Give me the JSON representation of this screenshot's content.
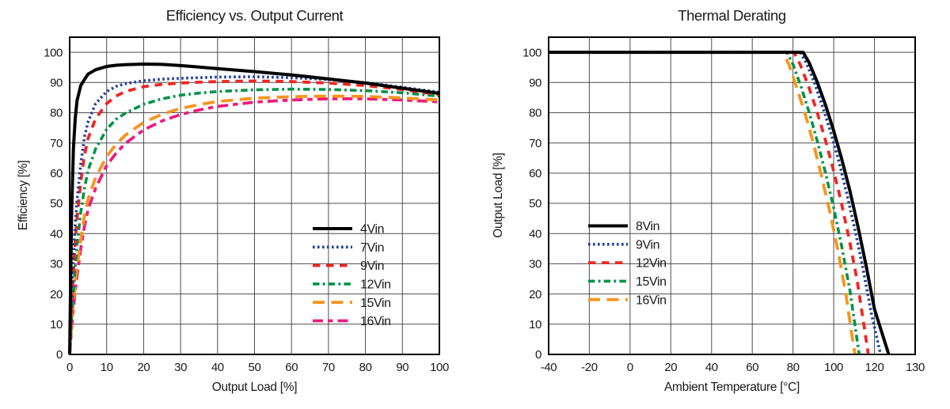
{
  "page": {
    "background": "#ffffff"
  },
  "colors": {
    "grid": "#4d4d4d",
    "frame": "#000000",
    "text": "#1a1a1a",
    "series_black": "#000000",
    "series_blue": "#21409a",
    "series_red": "#ee2724",
    "series_green": "#009347",
    "series_orange": "#f7941e",
    "series_pink": "#ec1c7c"
  },
  "chart_data": [
    {
      "type": "line",
      "title": "Efficiency vs. Output Current",
      "xlabel": "Output Load [%]",
      "ylabel": "Efficiency [%]",
      "xlim": [
        0,
        100
      ],
      "ylim": [
        0,
        105
      ],
      "xticks": [
        0,
        10,
        20,
        30,
        40,
        50,
        60,
        70,
        80,
        90,
        100
      ],
      "yticks": [
        0,
        10,
        20,
        30,
        40,
        50,
        60,
        70,
        80,
        90,
        100
      ],
      "grid": true,
      "legend_position": "inside-lower-right",
      "x": [
        0,
        0.5,
        1,
        1.5,
        2,
        3,
        4,
        5,
        7,
        10,
        12.5,
        15,
        20,
        25,
        30,
        35,
        40,
        50,
        60,
        70,
        80,
        90,
        100
      ],
      "series": [
        {
          "name": "4Vin",
          "color": "#000000",
          "style": "solid",
          "values": [
            0,
            45,
            68,
            78,
            84,
            89,
            91,
            92.8,
            94.2,
            95.3,
            95.7,
            95.9,
            96.1,
            96,
            95.6,
            95.1,
            94.6,
            93.6,
            92.5,
            91.2,
            89.8,
            88.1,
            86.4
          ]
        },
        {
          "name": "7Vin",
          "color": "#21409a",
          "style": "dotted",
          "values": [
            0,
            18,
            32,
            43,
            51,
            63,
            72,
            77,
            83,
            87,
            88.7,
            89.6,
            90.6,
            91.1,
            91.4,
            91.6,
            91.8,
            91.9,
            91.6,
            91,
            90,
            88.4,
            86.8
          ]
        },
        {
          "name": "9Vin",
          "color": "#ee2724",
          "style": "dashed",
          "values": [
            0,
            15,
            27,
            37,
            45,
            57,
            66,
            71.5,
            78,
            83,
            85.5,
            87,
            88.6,
            89.4,
            89.8,
            90.1,
            90.3,
            90.5,
            90.3,
            89.8,
            89,
            87.7,
            85.9
          ]
        },
        {
          "name": "12Vin",
          "color": "#009347",
          "style": "dashdot",
          "values": [
            0,
            12,
            21,
            29,
            36,
            47,
            55,
            61,
            68,
            74.5,
            77.8,
            79.8,
            82.8,
            84.6,
            85.8,
            86.5,
            87,
            87.6,
            87.8,
            87.7,
            87.3,
            86.6,
            85.5
          ]
        },
        {
          "name": "15Vin",
          "color": "#f7941e",
          "style": "longdash",
          "values": [
            0,
            9,
            17,
            23,
            29,
            38,
            46,
            51.5,
            58.5,
            65.5,
            69.5,
            72.5,
            76.8,
            79.5,
            81.4,
            82.7,
            83.7,
            84.8,
            85.3,
            85.5,
            85.4,
            84.9,
            84.2
          ]
        },
        {
          "name": "16Vin",
          "color": "#ec1c7c",
          "style": "longdashdot",
          "values": [
            0,
            8,
            15,
            21,
            26,
            35,
            42.5,
            48,
            55,
            62.5,
            66.5,
            69.8,
            74.3,
            77.3,
            79.4,
            80.9,
            82.1,
            83.5,
            84.2,
            84.6,
            84.6,
            84.2,
            83.6
          ]
        }
      ]
    },
    {
      "type": "line",
      "title": "Thermal Derating",
      "xlabel": "Ambient Temperature [°C]",
      "ylabel": "Output Load [%]",
      "xlim": [
        -40,
        130
      ],
      "ylim": [
        0,
        105
      ],
      "xticks": [
        -40,
        -20,
        0,
        20,
        40,
        60,
        80,
        100,
        120,
        130
      ],
      "yticks": [
        0,
        10,
        20,
        30,
        40,
        50,
        60,
        70,
        80,
        90,
        100
      ],
      "grid": true,
      "x_tick_spacing": "uniform-per-tick (last 120-130 cell same width as 20-unit cells)",
      "legend_position": "inside-lower-left",
      "series": [
        {
          "name": "8Vin",
          "color": "#000000",
          "style": "solid",
          "points": [
            [
              -40,
              100
            ],
            [
              85,
              100
            ],
            [
              88,
              96.5
            ],
            [
              92,
              90
            ],
            [
              96,
              82.5
            ],
            [
              100,
              74
            ],
            [
              104,
              64.5
            ],
            [
              108,
              54
            ],
            [
              112,
              42
            ],
            [
              116,
              29
            ],
            [
              120,
              15
            ],
            [
              123.5,
              0
            ]
          ]
        },
        {
          "name": "9Vin",
          "color": "#21409a",
          "style": "dotted",
          "points": [
            [
              -40,
              100
            ],
            [
              83.5,
              100
            ],
            [
              86.5,
              96.5
            ],
            [
              90.5,
              90
            ],
            [
              94.5,
              82
            ],
            [
              98.5,
              73.5
            ],
            [
              102.5,
              64
            ],
            [
              106.5,
              53
            ],
            [
              110.5,
              41
            ],
            [
              114.5,
              28
            ],
            [
              118.5,
              13.5
            ],
            [
              121.5,
              0
            ]
          ]
        },
        {
          "name": "12Vin",
          "color": "#ee2724",
          "style": "dashed",
          "points": [
            [
              -40,
              100
            ],
            [
              80.5,
              100
            ],
            [
              83.5,
              96
            ],
            [
              87.5,
              89
            ],
            [
              91.5,
              81
            ],
            [
              95.5,
              72
            ],
            [
              99.5,
              62
            ],
            [
              103.5,
              51
            ],
            [
              107.5,
              38.5
            ],
            [
              111.5,
              24.5
            ],
            [
              115,
              9
            ],
            [
              117,
              0
            ]
          ]
        },
        {
          "name": "15Vin",
          "color": "#009347",
          "style": "dashdot",
          "points": [
            [
              -40,
              100
            ],
            [
              77,
              100
            ],
            [
              80,
              96
            ],
            [
              84,
              88.5
            ],
            [
              88,
              80
            ],
            [
              92,
              70.5
            ],
            [
              96,
              60
            ],
            [
              100,
              48.5
            ],
            [
              104,
              35.5
            ],
            [
              108,
              21
            ],
            [
              111,
              7
            ],
            [
              112.5,
              0
            ]
          ]
        },
        {
          "name": "16Vin",
          "color": "#f7941e",
          "style": "longdash",
          "points": [
            [
              -40,
              100
            ],
            [
              75,
              100
            ],
            [
              78,
              96
            ],
            [
              82,
              88
            ],
            [
              86,
              79.5
            ],
            [
              90,
              70
            ],
            [
              94,
              59
            ],
            [
              98,
              47.5
            ],
            [
              102,
              34.5
            ],
            [
              106,
              20
            ],
            [
              109,
              6
            ],
            [
              110.5,
              0
            ]
          ]
        }
      ]
    }
  ]
}
